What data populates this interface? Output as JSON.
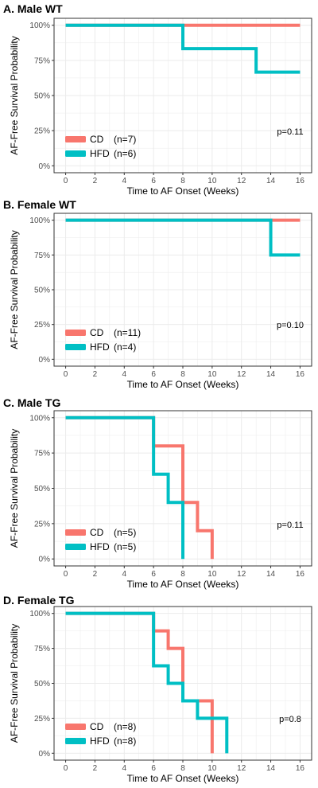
{
  "colors": {
    "cd": "#F8766D",
    "hfd": "#00BFC4",
    "grid": "#EBEBEB",
    "panel_border": "#333333",
    "tick_text": "#4D4D4D"
  },
  "chart_data": [
    {
      "type": "line",
      "title": "A. Male WT",
      "xlabel": "Time to AF Onset (Weeks)",
      "ylabel": "AF-Free Survival Probability",
      "xlim": [
        0,
        16
      ],
      "ylim": [
        0,
        1
      ],
      "x_ticks": [
        "0",
        "2",
        "4",
        "6",
        "8",
        "10",
        "12",
        "14",
        "16"
      ],
      "y_ticks": [
        "0%",
        "25%",
        "50%",
        "75%",
        "100%"
      ],
      "grid": true,
      "legend_position": "bottom-left",
      "p_value": "p=0.11",
      "series": [
        {
          "name": "CD",
          "n_label": "(n=7)",
          "color": "#F8766D",
          "x": [
            0,
            16
          ],
          "y": [
            1.0,
            1.0
          ]
        },
        {
          "name": "HFD",
          "n_label": "(n=6)",
          "color": "#00BFC4",
          "x": [
            0,
            8,
            13,
            16
          ],
          "y": [
            1.0,
            0.8333,
            0.6667,
            0.6667
          ]
        }
      ]
    },
    {
      "type": "line",
      "title": "B. Female WT",
      "xlabel": "Time to AF Onset (Weeks)",
      "ylabel": "AF-Free Survival Probability",
      "xlim": [
        0,
        16
      ],
      "ylim": [
        0,
        1
      ],
      "x_ticks": [
        "0",
        "2",
        "4",
        "6",
        "8",
        "10",
        "12",
        "14",
        "16"
      ],
      "y_ticks": [
        "0%",
        "25%",
        "50%",
        "75%",
        "100%"
      ],
      "grid": true,
      "legend_position": "bottom-left",
      "p_value": "p=0.10",
      "series": [
        {
          "name": "CD",
          "n_label": "(n=11)",
          "color": "#F8766D",
          "x": [
            0,
            16
          ],
          "y": [
            1.0,
            1.0
          ]
        },
        {
          "name": "HFD",
          "n_label": "(n=4)",
          "color": "#00BFC4",
          "x": [
            0,
            14,
            16
          ],
          "y": [
            1.0,
            0.75,
            0.75
          ]
        }
      ]
    },
    {
      "type": "line",
      "title": "C. Male TG",
      "xlabel": "Time to AF Onset (Weeks)",
      "ylabel": "AF-Free Survival Probability",
      "xlim": [
        0,
        16
      ],
      "ylim": [
        0,
        1
      ],
      "x_ticks": [
        "0",
        "2",
        "4",
        "6",
        "8",
        "10",
        "12",
        "14",
        "16"
      ],
      "y_ticks": [
        "0%",
        "25%",
        "50%",
        "75%",
        "100%"
      ],
      "grid": true,
      "legend_position": "bottom-left",
      "p_value": "p=0.11",
      "series": [
        {
          "name": "CD",
          "n_label": "(n=5)",
          "color": "#F8766D",
          "x": [
            0,
            6,
            8,
            9,
            10
          ],
          "y": [
            1.0,
            0.8,
            0.4,
            0.2,
            0.0
          ]
        },
        {
          "name": "HFD",
          "n_label": "(n=5)",
          "color": "#00BFC4",
          "x": [
            0,
            6,
            7,
            8
          ],
          "y": [
            1.0,
            0.6,
            0.4,
            0.0
          ]
        }
      ]
    },
    {
      "type": "line",
      "title": "D. Female TG",
      "xlabel": "Time to AF Onset (Weeks)",
      "ylabel": "AF-Free Survival Probability",
      "xlim": [
        0,
        16
      ],
      "ylim": [
        0,
        1
      ],
      "x_ticks": [
        "0",
        "2",
        "4",
        "6",
        "8",
        "10",
        "12",
        "14",
        "16"
      ],
      "y_ticks": [
        "0%",
        "25%",
        "50%",
        "75%",
        "100%"
      ],
      "grid": true,
      "legend_position": "bottom-left",
      "p_value": "p=0.8",
      "series": [
        {
          "name": "CD",
          "n_label": "(n=8)",
          "color": "#F8766D",
          "x": [
            0,
            6,
            7,
            8,
            10
          ],
          "y": [
            1.0,
            0.875,
            0.75,
            0.375,
            0.0
          ]
        },
        {
          "name": "HFD",
          "n_label": "(n=8)",
          "color": "#00BFC4",
          "x": [
            0,
            6,
            7,
            8,
            9,
            11
          ],
          "y": [
            1.0,
            0.625,
            0.5,
            0.375,
            0.25,
            0.0
          ]
        }
      ]
    }
  ]
}
